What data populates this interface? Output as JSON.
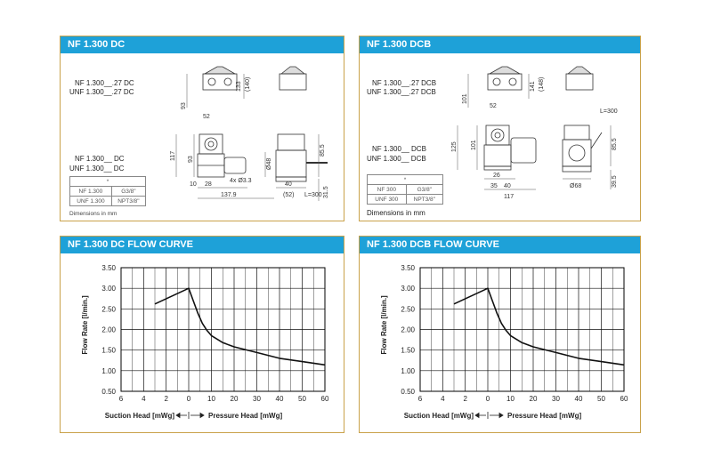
{
  "panels": [
    {
      "title": "NF 1.300 DC",
      "labels": [
        "NF 1.300__.27 DC",
        "UNF 1.300__.27 DC",
        "NF 1.300__ DC",
        "UNF 1.300__ DC"
      ],
      "spec_header": "*",
      "spec_rows": [
        [
          "NF 1.300",
          "G3/8\""
        ],
        [
          "UNF 1.300",
          "NPT3/8\""
        ]
      ],
      "dims_note": "Dimensions in mm",
      "dims": [
        "133",
        "(140)",
        "93",
        "52",
        "117",
        "93",
        "85.5",
        "Ø48",
        "10",
        "28",
        "4x Ø3.3",
        "137.9",
        "40",
        "(52)",
        "31.5",
        "L=300"
      ]
    },
    {
      "title": "NF 1.300 DCB",
      "labels": [
        "NF 1.300__.27 DCB",
        "UNF 1.300__.27 DCB",
        "NF 1.300__ DCB",
        "UNF 1.300__ DCB"
      ],
      "spec_header": "*",
      "spec_rows": [
        [
          "NF 300",
          "G3/8\""
        ],
        [
          "UNF 300",
          "NPT3/8\""
        ]
      ],
      "dims_note": "Dimensions in mm",
      "dims": [
        "141",
        "(148)",
        "101",
        "52",
        "125",
        "101",
        "L=300",
        "85.5",
        "26",
        "35",
        "40",
        "117",
        "Ø68",
        "39.5"
      ]
    }
  ],
  "chart_data": [
    {
      "type": "line",
      "title": "NF 1.300 DC FLOW CURVE",
      "ylabel": "Flow Rate  [l/min.]",
      "xlabel_left": "Suction Head [mWg]",
      "xlabel_right": "Pressure Head [mWg]",
      "x_tick_labels": [
        "6",
        "4",
        "2",
        "0",
        "10",
        "20",
        "30",
        "40",
        "50",
        "60"
      ],
      "y_tick_labels": [
        "3.50",
        "3.00",
        "2.50",
        "2.00",
        "1.50",
        "1.00",
        "0.50"
      ],
      "ylim": [
        0.5,
        3.5
      ],
      "grid": true,
      "series": [
        {
          "x": [
            -3,
            0,
            2,
            4,
            6,
            8,
            10,
            15,
            20,
            30,
            40,
            50,
            60
          ],
          "y": [
            2.62,
            3.0,
            2.7,
            2.4,
            2.15,
            1.98,
            1.85,
            1.68,
            1.58,
            1.44,
            1.3,
            1.22,
            1.14
          ]
        }
      ]
    },
    {
      "type": "line",
      "title": "NF 1.300 DCB FLOW CURVE",
      "ylabel": "Flow Rate  [l/min.]",
      "xlabel_left": "Suction Head [mWg]",
      "xlabel_right": "Pressure Head [mWg]",
      "x_tick_labels": [
        "6",
        "4",
        "2",
        "0",
        "10",
        "20",
        "30",
        "40",
        "50",
        "60"
      ],
      "y_tick_labels": [
        "3.50",
        "3.00",
        "2.50",
        "2.00",
        "1.50",
        "1.00",
        "0.50"
      ],
      "ylim": [
        0.5,
        3.5
      ],
      "grid": true,
      "series": [
        {
          "x": [
            -3,
            0,
            2,
            4,
            6,
            8,
            10,
            15,
            20,
            30,
            40,
            50,
            60
          ],
          "y": [
            2.62,
            3.0,
            2.7,
            2.4,
            2.15,
            1.98,
            1.85,
            1.68,
            1.58,
            1.44,
            1.3,
            1.22,
            1.14
          ]
        }
      ]
    }
  ]
}
